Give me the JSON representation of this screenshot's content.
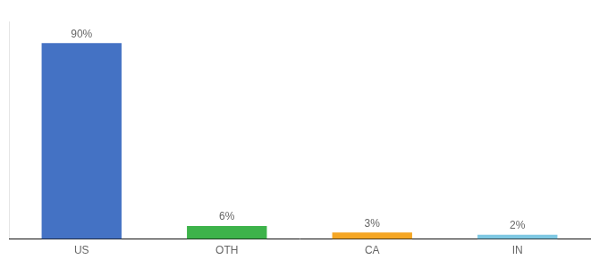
{
  "chart_data": {
    "type": "bar",
    "categories": [
      "US",
      "OTH",
      "CA",
      "IN"
    ],
    "values": [
      90,
      6,
      3,
      2
    ],
    "value_labels": [
      "90%",
      "6%",
      "3%",
      "2%"
    ],
    "colors": [
      "#4472c4",
      "#3db34a",
      "#f5a623",
      "#7ec8e3"
    ],
    "ylim": [
      0,
      100
    ],
    "data_labels": true,
    "tick_labels": "x",
    "grid": false
  }
}
